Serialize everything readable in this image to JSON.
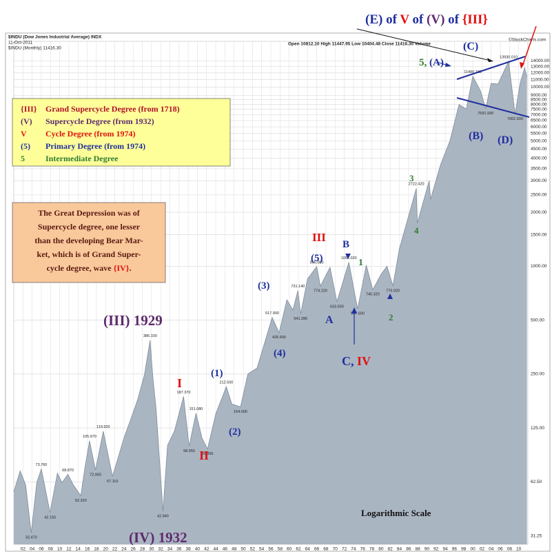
{
  "chart_data": {
    "type": "area",
    "log_y": true,
    "grid": true,
    "color": "#aab5c2",
    "line_color": "#7f8c9b",
    "header": {
      "title": "$INDU (Dow Jones Industrial Average) INDX",
      "date": "11-Oct-2011",
      "series_label": "$INDU (Monthly) 11416.30",
      "quote": "Open 10812.10 High 11447.95 Low 10404.48 Close 11416.30 Volume",
      "source": "©StockCharts.com"
    },
    "xlim": [
      1900,
      2012
    ],
    "ylim": [
      28,
      18000
    ],
    "xticks": [
      {
        "value": 1902,
        "label": "02"
      },
      {
        "value": 1904,
        "label": "04"
      },
      {
        "value": 1906,
        "label": "06"
      },
      {
        "value": 1908,
        "label": "08"
      },
      {
        "value": 1910,
        "label": "10"
      },
      {
        "value": 1912,
        "label": "12"
      },
      {
        "value": 1914,
        "label": "14"
      },
      {
        "value": 1916,
        "label": "16"
      },
      {
        "value": 1918,
        "label": "18"
      },
      {
        "value": 1920,
        "label": "20"
      },
      {
        "value": 1922,
        "label": "22"
      },
      {
        "value": 1924,
        "label": "24"
      },
      {
        "value": 1926,
        "label": "26"
      },
      {
        "value": 1928,
        "label": "28"
      },
      {
        "value": 1930,
        "label": "30"
      },
      {
        "value": 1932,
        "label": "32"
      },
      {
        "value": 1934,
        "label": "34"
      },
      {
        "value": 1936,
        "label": "36"
      },
      {
        "value": 1938,
        "label": "38"
      },
      {
        "value": 1940,
        "label": "40"
      },
      {
        "value": 1942,
        "label": "42"
      },
      {
        "value": 1944,
        "label": "44"
      },
      {
        "value": 1946,
        "label": "46"
      },
      {
        "value": 1948,
        "label": "48"
      },
      {
        "value": 1950,
        "label": "50"
      },
      {
        "value": 1952,
        "label": "52"
      },
      {
        "value": 1954,
        "label": "54"
      },
      {
        "value": 1956,
        "label": "56"
      },
      {
        "value": 1958,
        "label": "58"
      },
      {
        "value": 1960,
        "label": "60"
      },
      {
        "value": 1962,
        "label": "62"
      },
      {
        "value": 1964,
        "label": "64"
      },
      {
        "value": 1966,
        "label": "66"
      },
      {
        "value": 1968,
        "label": "68"
      },
      {
        "value": 1970,
        "label": "70"
      },
      {
        "value": 1972,
        "label": "72"
      },
      {
        "value": 1974,
        "label": "74"
      },
      {
        "value": 1976,
        "label": "76"
      },
      {
        "value": 1978,
        "label": "78"
      },
      {
        "value": 1980,
        "label": "80"
      },
      {
        "value": 1982,
        "label": "82"
      },
      {
        "value": 1984,
        "label": "84"
      },
      {
        "value": 1986,
        "label": "86"
      },
      {
        "value": 1988,
        "label": "88"
      },
      {
        "value": 1990,
        "label": "90"
      },
      {
        "value": 1992,
        "label": "92"
      },
      {
        "value": 1994,
        "label": "94"
      },
      {
        "value": 1996,
        "label": "96"
      },
      {
        "value": 1998,
        "label": "98"
      },
      {
        "value": 2000,
        "label": "00"
      },
      {
        "value": 2002,
        "label": "02"
      },
      {
        "value": 2004,
        "label": "04"
      },
      {
        "value": 2006,
        "label": "06"
      },
      {
        "value": 2008,
        "label": "08"
      },
      {
        "value": 2010,
        "label": "10"
      }
    ],
    "yticks": [
      31.25,
      {
        "value": 62.5,
        "label": "62.50"
      },
      {
        "value": 125,
        "label": "125.00"
      },
      {
        "value": 250,
        "label": "250.00"
      },
      {
        "value": 500,
        "label": "500.00"
      },
      {
        "value": 1000,
        "label": "1000.00"
      },
      {
        "value": 1500,
        "label": "1500.00"
      },
      {
        "value": 2000,
        "label": "2000.00"
      },
      {
        "value": 2500,
        "label": "2500.00"
      },
      {
        "value": 3000,
        "label": "3000.00"
      },
      {
        "value": 3500,
        "label": "3500.00"
      },
      {
        "value": 4000,
        "label": "4000.00"
      },
      {
        "value": 4500,
        "label": "4500.00"
      },
      {
        "value": 5000,
        "label": "5000.00"
      },
      {
        "value": 5500,
        "label": "5500.00"
      },
      {
        "value": 6000,
        "label": "6000.00"
      },
      {
        "value": 6500,
        "label": "6500.00"
      },
      {
        "value": 7000,
        "label": "7000.00"
      },
      {
        "value": 7500,
        "label": "7500.00"
      },
      {
        "value": 8000,
        "label": "8000.00"
      },
      {
        "value": 8500,
        "label": "8500.00"
      },
      {
        "value": 9000,
        "label": "9000.00"
      },
      {
        "value": 10000,
        "label": "10000.00"
      },
      {
        "value": 11000,
        "label": "11000.00"
      },
      {
        "value": 12000,
        "label": "12000.00"
      },
      {
        "value": 13000,
        "label": "13000.00"
      },
      {
        "value": 14000,
        "label": "14000.00"
      }
    ],
    "x": [
      1900,
      1901.4,
      1902.6,
      1903.8,
      1905,
      1906,
      1907.9,
      1909.5,
      1910.5,
      1911.8,
      1913,
      1914.6,
      1915.5,
      1916.5,
      1917.8,
      1919.5,
      1920.5,
      1921.5,
      1923,
      1924,
      1925.5,
      1927,
      1928.5,
      1929.7,
      1930.3,
      1931,
      1932.5,
      1933.5,
      1935,
      1937,
      1938.2,
      1939.7,
      1941,
      1942.2,
      1944,
      1946.3,
      1947.5,
      1949.4,
      1951,
      1953,
      1955,
      1956.3,
      1957.8,
      1959.5,
      1960.8,
      1961.9,
      1962.5,
      1964,
      1966,
      1966.8,
      1968.9,
      1970.4,
      1973,
      1974.9,
      1976.8,
      1978.2,
      1980,
      1981.3,
      1982.6,
      1984,
      1986,
      1987.7,
      1987.9,
      1990.5,
      1990.8,
      1993,
      1995,
      1997,
      1998.6,
      2000,
      2001.7,
      2002.8,
      2004,
      2005.5,
      2007.8,
      2009.2,
      2010.3,
      2011.3,
      2011.8
    ],
    "values": [
      55,
      72,
      60,
      32.47,
      62,
      73.76,
      42.15,
      70,
      62,
      68.87,
      60,
      52.32,
      75,
      105.97,
      72.95,
      119.92,
      90,
      67.11,
      90,
      110,
      140,
      180,
      250,
      386.1,
      240,
      160,
      42.84,
      100,
      120,
      187.37,
      98.95,
      151.08,
      110,
      95.35,
      150,
      212.5,
      170,
      164,
      250,
      270,
      400,
      517.9,
      425.6,
      650,
      570,
      731.14,
      541.28,
      850,
      995,
      774.22,
      985,
      633.5,
      1052.02,
      577.6,
      1014,
      740.32,
      900,
      1000,
      776.92,
      1250,
      1900,
      2722.42,
      1738,
      2999,
      2365,
      3700,
      5000,
      8000,
      7539,
      11490.18,
      9500,
      7591.93,
      10500,
      10400,
      13930.01,
      7062.93,
      10500,
      12810,
      11416.3
    ],
    "value_labels": [
      null,
      null,
      null,
      "32.470",
      null,
      "73.760",
      "42.150",
      null,
      null,
      "68.870",
      null,
      "52.320",
      null,
      "105.970",
      "72.950",
      "119.920",
      null,
      "67.110",
      null,
      null,
      null,
      null,
      null,
      "386.100",
      null,
      null,
      "42.840",
      null,
      null,
      "187.370",
      "98.950",
      "151.080",
      null,
      "95.350",
      null,
      "212.500",
      null,
      "164.000",
      null,
      null,
      null,
      "517.900",
      "425.600",
      null,
      null,
      "731.140",
      "541.280",
      null,
      "995.000",
      "774.220",
      null,
      "633.500",
      "1052.020",
      "577.600",
      null,
      "740.320",
      null,
      null,
      "776.920",
      null,
      null,
      "2722.420",
      null,
      null,
      null,
      null,
      null,
      null,
      null,
      "11490.180",
      null,
      "7591.930",
      null,
      null,
      "13930.010",
      "7062.930",
      null,
      null,
      null
    ],
    "legend": [
      {
        "symbol": "{III}",
        "text": "Grand Supercycle Degree (from 1718)",
        "color": "#b0102a"
      },
      {
        "symbol": "(V)",
        "text": "Supercycle Degree (from 1932)",
        "color": "#5e2a6e"
      },
      {
        "symbol": "V",
        "text": "Cycle Degree (from 1974)",
        "color": "#e01010"
      },
      {
        "symbol": "(5)",
        "text": "Primary Degree (from 1974)",
        "color": "#1f2f9e"
      },
      {
        "symbol": "5",
        "text": "Intermediate Degree",
        "color": "#2e7d32"
      }
    ],
    "note": {
      "lines": [
        "The Great Depression was of",
        "Supercycle degree, one lesser",
        "than the developing Bear Mar-",
        "ket, which is of Grand Super-"
      ],
      "last": [
        {
          "text": "cycle degree, wave ",
          "color": "#5a1a10"
        },
        {
          "text": "{IV}",
          "color": "#e01010"
        },
        {
          "text": ".",
          "color": "#5a1a10"
        }
      ]
    },
    "annotations": [
      {
        "parts": [
          {
            "text": "(E) of ",
            "color": "#1f2f9e"
          },
          {
            "text": "V",
            "color": "#e01010"
          },
          {
            "text": " of ",
            "color": "#1f2f9e"
          },
          {
            "text": "(V)",
            "color": "#5e2a6e"
          },
          {
            "text": " of ",
            "color": "#1f2f9e"
          },
          {
            "text": "{III}",
            "color": "#e01010"
          }
        ]
      },
      {
        "parts": [
          {
            "text": "5,",
            "color": "#2e7d32"
          },
          {
            "text": " (A)",
            "color": "#1f2f9e"
          }
        ]
      },
      {
        "parts": [
          {
            "text": "(C)",
            "color": "#1f2f9e"
          }
        ]
      },
      {
        "parts": [
          {
            "text": "(B)",
            "color": "#1f2f9e"
          }
        ]
      },
      {
        "parts": [
          {
            "text": "(D)",
            "color": "#1f2f9e"
          }
        ]
      },
      {
        "parts": [
          {
            "text": "3",
            "color": "#2e7d32"
          }
        ]
      },
      {
        "parts": [
          {
            "text": "4",
            "color": "#2e7d32"
          }
        ]
      },
      {
        "parts": [
          {
            "text": "1",
            "color": "#2e7d32"
          }
        ]
      },
      {
        "parts": [
          {
            "text": "2",
            "color": "#2e7d32"
          }
        ]
      },
      {
        "parts": [
          {
            "text": "III",
            "color": "#e01010"
          }
        ]
      },
      {
        "parts": [
          {
            "text": "B",
            "color": "#1f2f9e"
          }
        ]
      },
      {
        "parts": [
          {
            "text": "(5)",
            "color": "#1f2f9e"
          }
        ]
      },
      {
        "parts": [
          {
            "text": "A",
            "color": "#1f2f9e"
          }
        ]
      },
      {
        "parts": [
          {
            "text": "C, ",
            "color": "#1f2f9e"
          },
          {
            "text": "IV",
            "color": "#e01010"
          }
        ]
      },
      {
        "parts": [
          {
            "text": "(3)",
            "color": "#1f2f9e"
          }
        ]
      },
      {
        "parts": [
          {
            "text": "(4)",
            "color": "#1f2f9e"
          }
        ]
      },
      {
        "parts": [
          {
            "text": "(1)",
            "color": "#1f2f9e"
          }
        ]
      },
      {
        "parts": [
          {
            "text": "(2)",
            "color": "#1f2f9e"
          }
        ]
      },
      {
        "parts": [
          {
            "text": "I",
            "color": "#e01010"
          }
        ]
      },
      {
        "parts": [
          {
            "text": "II",
            "color": "#e01010"
          }
        ]
      },
      {
        "parts": [
          {
            "text": "(III) 1929",
            "color": "#5e2a6e"
          }
        ]
      },
      {
        "parts": [
          {
            "text": "(IV) 1932",
            "color": "#5e2a6e"
          }
        ]
      },
      {
        "parts": [
          {
            "text": "Logarithmic Scale",
            "color": "#111111"
          }
        ]
      }
    ]
  }
}
